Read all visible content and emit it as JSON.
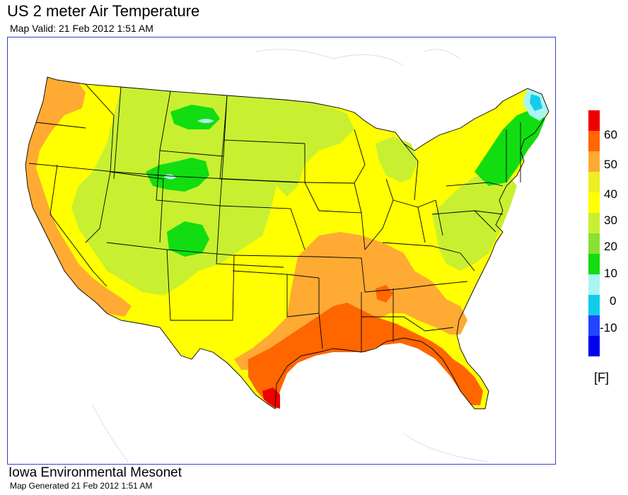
{
  "header": {
    "title": "US 2 meter Air Temperature",
    "subtitle": "Map Valid: 21 Feb 2012 1:51 AM"
  },
  "footer": {
    "org": "Iowa Environmental Mesonet",
    "generated": "Map Generated 21 Feb 2012 1:51 AM"
  },
  "legend": {
    "units": "[F]",
    "bins": [
      {
        "label": "60",
        "color": "#ff0000"
      },
      {
        "label": "50",
        "color": "#ff6600"
      },
      {
        "label": "40",
        "color": "#ffaa33"
      },
      {
        "label": "30",
        "color": "#ffff00"
      },
      {
        "label": "20",
        "color": "#a0f040"
      },
      {
        "label": "10",
        "color": "#11dd11"
      },
      {
        "label": "0",
        "color": "#aaf5f0"
      },
      {
        "label": "-10",
        "color": "#11ccee"
      }
    ],
    "colors_full": [
      "#ee0000",
      "#ff6600",
      "#ffaa33",
      "#eeee22",
      "#ffff00",
      "#c8f030",
      "#88e030",
      "#11dd11",
      "#aaf5f0",
      "#11ccee",
      "#2244ff",
      "#0000ee"
    ]
  }
}
